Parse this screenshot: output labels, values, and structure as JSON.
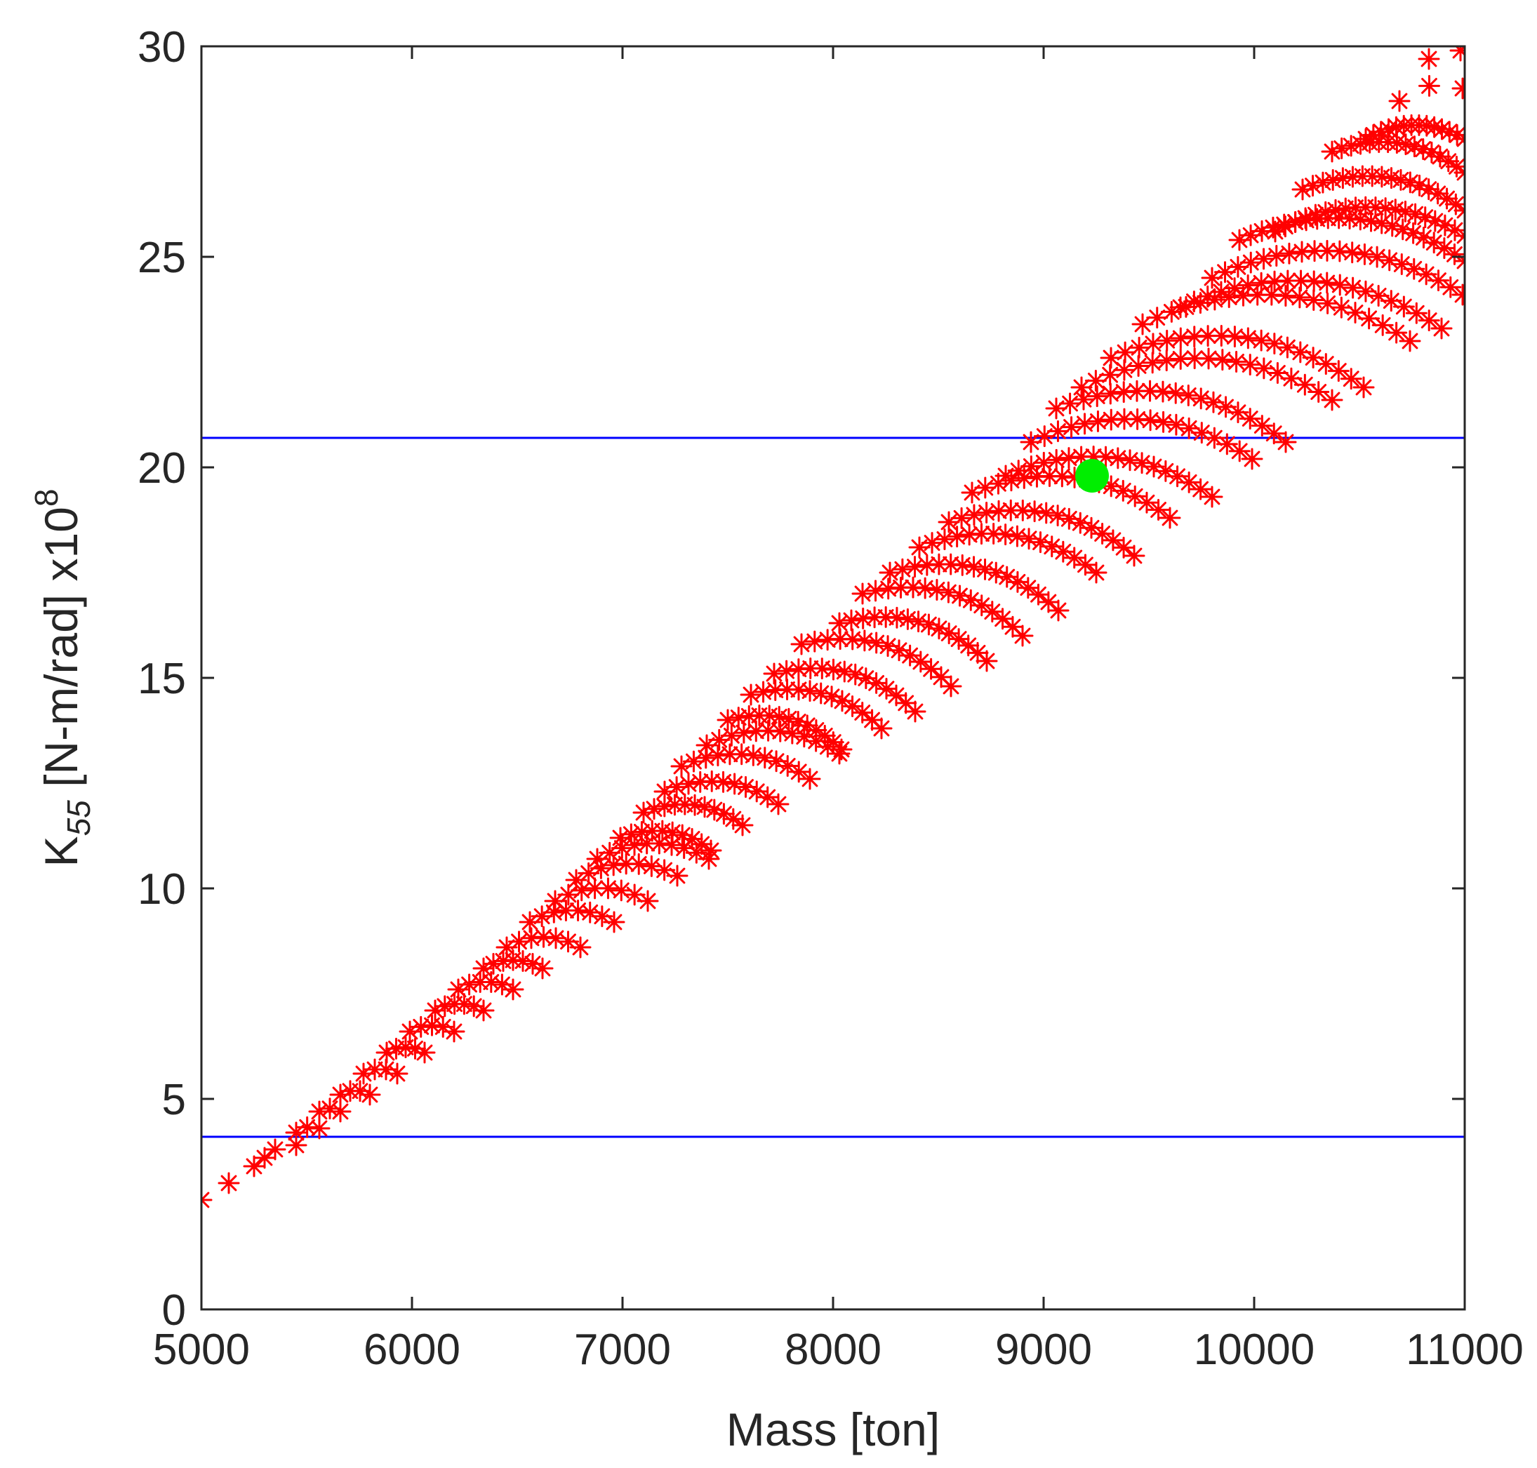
{
  "chart_data": {
    "type": "scatter",
    "title": "",
    "xlabel": "Mass [ton]",
    "ylabel": {
      "base": "K",
      "subscript": "55",
      "text": " [N-m/rad] x10",
      "superscript": "8"
    },
    "xlim": [
      5000,
      11000
    ],
    "ylim": [
      0,
      30
    ],
    "xticks": [
      "5000",
      "6000",
      "7000",
      "8000",
      "9000",
      "10000",
      "11000"
    ],
    "yticks": [
      "0",
      "5",
      "10",
      "15",
      "20",
      "25",
      "30"
    ],
    "grid": false,
    "legend": "none",
    "design_space": {
      "marker": "asterisk",
      "color": "#ff0000",
      "families": [
        {
          "mass_start": 5000,
          "k_start": 2.6,
          "mass_end": 5000,
          "k_end": 2.6,
          "count": 1
        },
        {
          "mass_start": 5130,
          "k_start": 3.0,
          "mass_end": 5130,
          "k_end": 3.0,
          "count": 1
        },
        {
          "mass_start": 5250,
          "k_start": 3.4,
          "mass_end": 5300,
          "k_end": 3.6,
          "count": 2
        },
        {
          "mass_start": 5350,
          "k_start": 3.8,
          "mass_end": 5450,
          "k_end": 3.9,
          "count": 2
        },
        {
          "mass_start": 5450,
          "k_start": 4.2,
          "mass_end": 5560,
          "k_end": 4.3,
          "count": 3
        },
        {
          "mass_start": 5560,
          "k_start": 4.7,
          "mass_end": 5660,
          "k_end": 4.7,
          "count": 3
        },
        {
          "mass_start": 5660,
          "k_start": 5.1,
          "mass_end": 5800,
          "k_end": 5.1,
          "count": 4
        },
        {
          "mass_start": 5770,
          "k_start": 5.6,
          "mass_end": 5930,
          "k_end": 5.6,
          "count": 4
        },
        {
          "mass_start": 5880,
          "k_start": 6.1,
          "mass_end": 6060,
          "k_end": 6.1,
          "count": 5
        },
        {
          "mass_start": 5990,
          "k_start": 6.6,
          "mass_end": 6200,
          "k_end": 6.6,
          "count": 5
        },
        {
          "mass_start": 6110,
          "k_start": 7.1,
          "mass_end": 6340,
          "k_end": 7.1,
          "count": 6
        },
        {
          "mass_start": 6220,
          "k_start": 7.6,
          "mass_end": 6480,
          "k_end": 7.6,
          "count": 6
        },
        {
          "mass_start": 6340,
          "k_start": 8.1,
          "mass_end": 6620,
          "k_end": 8.1,
          "count": 7
        },
        {
          "mass_start": 6450,
          "k_start": 8.6,
          "mass_end": 6800,
          "k_end": 8.6,
          "count": 7
        },
        {
          "mass_start": 6560,
          "k_start": 9.2,
          "mass_end": 6960,
          "k_end": 9.2,
          "count": 8
        },
        {
          "mass_start": 6680,
          "k_start": 9.7,
          "mass_end": 7120,
          "k_end": 9.7,
          "count": 8
        },
        {
          "mass_start": 6780,
          "k_start": 10.2,
          "mass_end": 7260,
          "k_end": 10.3,
          "count": 9
        },
        {
          "mass_start": 6880,
          "k_start": 10.7,
          "mass_end": 7410,
          "k_end": 10.7,
          "count": 10
        },
        {
          "mass_start": 6990,
          "k_start": 11.2,
          "mass_end": 7420,
          "k_end": 10.9,
          "count": 10
        },
        {
          "mass_start": 7100,
          "k_start": 11.8,
          "mass_end": 7570,
          "k_end": 11.5,
          "count": 11
        },
        {
          "mass_start": 7200,
          "k_start": 12.3,
          "mass_end": 7740,
          "k_end": 12.0,
          "count": 11
        },
        {
          "mass_start": 7280,
          "k_start": 12.9,
          "mass_end": 7890,
          "k_end": 12.6,
          "count": 12
        },
        {
          "mass_start": 7400,
          "k_start": 13.4,
          "mass_end": 8030,
          "k_end": 13.2,
          "count": 12
        },
        {
          "mass_start": 7500,
          "k_start": 14.0,
          "mass_end": 8040,
          "k_end": 13.3,
          "count": 13
        },
        {
          "mass_start": 7610,
          "k_start": 14.6,
          "mass_end": 8230,
          "k_end": 13.8,
          "count": 13
        },
        {
          "mass_start": 7720,
          "k_start": 15.1,
          "mass_end": 8390,
          "k_end": 14.2,
          "count": 14
        },
        {
          "mass_start": 7850,
          "k_start": 15.8,
          "mass_end": 8560,
          "k_end": 14.8,
          "count": 14
        },
        {
          "mass_start": 8030,
          "k_start": 16.3,
          "mass_end": 8730,
          "k_end": 15.4,
          "count": 15
        },
        {
          "mass_start": 8140,
          "k_start": 17.0,
          "mass_end": 8900,
          "k_end": 16.0,
          "count": 15
        },
        {
          "mass_start": 8270,
          "k_start": 17.5,
          "mass_end": 9070,
          "k_end": 16.6,
          "count": 16
        },
        {
          "mass_start": 8410,
          "k_start": 18.1,
          "mass_end": 9250,
          "k_end": 17.5,
          "count": 16
        },
        {
          "mass_start": 8550,
          "k_start": 18.7,
          "mass_end": 9430,
          "k_end": 17.9,
          "count": 17
        },
        {
          "mass_start": 8660,
          "k_start": 19.4,
          "mass_end": 9600,
          "k_end": 18.8,
          "count": 17
        },
        {
          "mass_start": 8820,
          "k_start": 19.8,
          "mass_end": 9800,
          "k_end": 19.3,
          "count": 18
        },
        {
          "mass_start": 8940,
          "k_start": 20.6,
          "mass_end": 9990,
          "k_end": 20.2,
          "count": 18
        },
        {
          "mass_start": 9060,
          "k_start": 21.4,
          "mass_end": 10150,
          "k_end": 20.6,
          "count": 19
        },
        {
          "mass_start": 9180,
          "k_start": 21.9,
          "mass_end": 10370,
          "k_end": 21.6,
          "count": 19
        },
        {
          "mass_start": 9320,
          "k_start": 22.6,
          "mass_end": 10520,
          "k_end": 21.9,
          "count": 20
        },
        {
          "mass_start": 9470,
          "k_start": 23.4,
          "mass_end": 10740,
          "k_end": 23.0,
          "count": 20
        },
        {
          "mass_start": 9650,
          "k_start": 23.8,
          "mass_end": 10890,
          "k_end": 23.3,
          "count": 21
        },
        {
          "mass_start": 9800,
          "k_start": 24.5,
          "mass_end": 10990,
          "k_end": 24.1,
          "count": 21
        },
        {
          "mass_start": 9930,
          "k_start": 25.4,
          "mass_end": 11000,
          "k_end": 24.9,
          "count": 22
        },
        {
          "mass_start": 10100,
          "k_start": 25.6,
          "mass_end": 11000,
          "k_end": 25.5,
          "count": 20
        },
        {
          "mass_start": 10230,
          "k_start": 26.6,
          "mass_end": 11000,
          "k_end": 26.1,
          "count": 18
        },
        {
          "mass_start": 10370,
          "k_start": 27.5,
          "mass_end": 11000,
          "k_end": 27.0,
          "count": 16
        },
        {
          "mass_start": 10530,
          "k_start": 27.8,
          "mass_end": 11000,
          "k_end": 27.8,
          "count": 14
        },
        {
          "mass_start": 10690,
          "k_start": 28.7,
          "mass_end": 10990,
          "k_end": 29.0,
          "count": 3
        },
        {
          "mass_start": 10830,
          "k_start": 29.7,
          "mass_end": 10980,
          "k_end": 29.9,
          "count": 2
        }
      ]
    },
    "reference_lines": [
      {
        "k": 20.7,
        "color": "#0000ff"
      },
      {
        "k": 4.1,
        "color": "#0000ff"
      }
    ],
    "selected_point": {
      "mass": 9230,
      "k": 19.8,
      "color": "#00ee00"
    }
  }
}
